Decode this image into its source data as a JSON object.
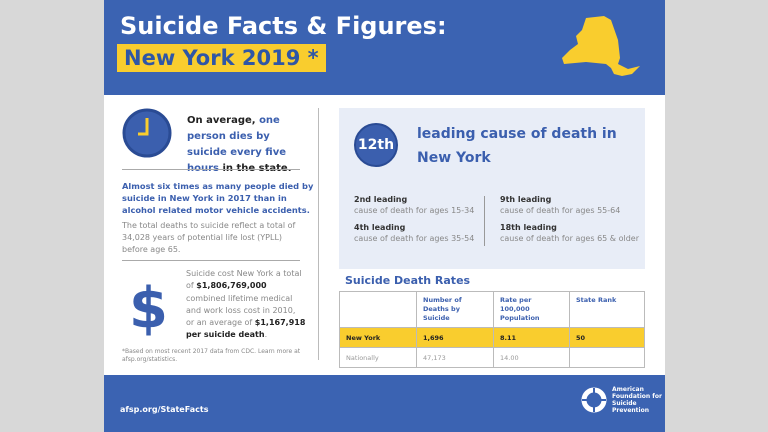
{
  "header": {
    "title": "Suicide Facts & Figures:",
    "subtitle": "New York 2019 *"
  },
  "left": {
    "avg_pre": "On average, ",
    "avg_hl": "one person dies by suicide every five hours",
    "avg_post": " in the state.",
    "six": "Almost six times as many people died by suicide in New York in 2017 than in alcohol related motor vehicle accidents.",
    "ypll": "The total deaths to suicide reflect a total of 34,028 years of potential life lost (YPLL) before age 65.",
    "cost_1": "Suicide cost New York a total of ",
    "cost_total": "$1,806,769,000",
    "cost_2": " combined lifetime medical and work loss cost in 2010, or an average of ",
    "cost_avg": "$1,167,918 per suicide death",
    "cost_3": ".",
    "dollar": "$",
    "footnote": "*Based on most recent 2017 data from CDC. Learn more at afsp.org/statistics."
  },
  "rank": {
    "badge": "12th",
    "text": "leading cause of death in New York",
    "items": [
      {
        "rank": "2nd leading",
        "desc": "cause of death for ages 15-34"
      },
      {
        "rank": "4th leading",
        "desc": "cause of death for ages 35-54"
      },
      {
        "rank": "9th leading",
        "desc": "cause of death for ages 55-64"
      },
      {
        "rank": "18th leading",
        "desc": "cause of death for ages 65 & older"
      }
    ]
  },
  "rates": {
    "title": "Suicide Death Rates",
    "headers": [
      "",
      "Number of Deaths by Suicide",
      "Rate per 100,000 Population",
      "State Rank"
    ],
    "rows": [
      [
        "New York",
        "1,696",
        "8.11",
        "50"
      ],
      [
        "Nationally",
        "47,173",
        "14.00",
        ""
      ]
    ]
  },
  "footer": {
    "url": "afsp.org/StateFacts",
    "org": "American Foundation for Suicide Prevention"
  }
}
